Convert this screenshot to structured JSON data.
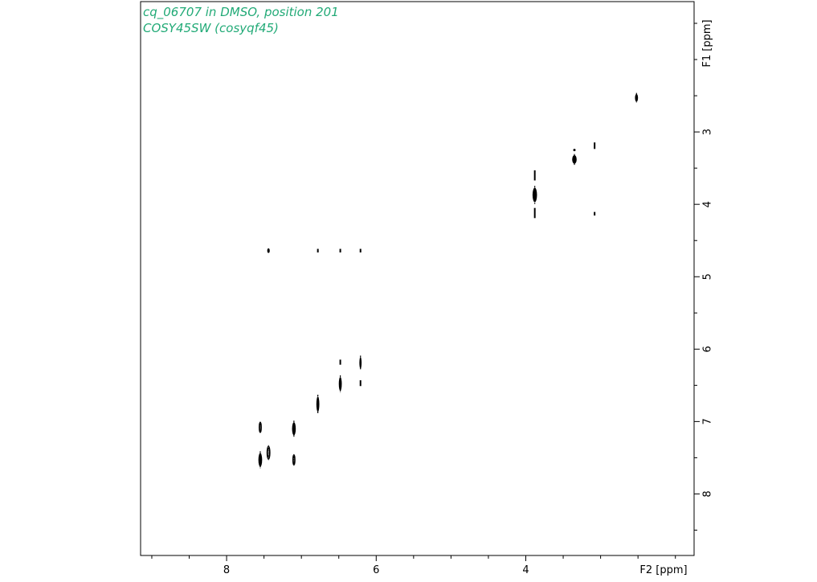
{
  "chart_data": {
    "type": "scatter",
    "subtype": "2D NMR COSY contour plot",
    "title": "cq_06707 in DMSO, position 201",
    "subtitle": "COSY45SW (cosyqf45)",
    "xlabel": "F2 [ppm]",
    "ylabel": "F1 [ppm]",
    "x_axis_reversed": true,
    "y_axis_reversed": true,
    "xlim": [
      9.15,
      1.75
    ],
    "ylim": [
      1.2,
      8.85
    ],
    "x_ticks": [
      8,
      6,
      4
    ],
    "x_tick_labels": [
      "8",
      "6",
      "4"
    ],
    "y_ticks": [
      3,
      4,
      5,
      6,
      7,
      8
    ],
    "y_tick_labels": [
      "3",
      "4",
      "5",
      "6",
      "7",
      "8"
    ],
    "grid": false,
    "legend": "none",
    "colors": {
      "title": "#22aa77",
      "contours": "#000000"
    },
    "peaks": [
      {
        "f2": 2.52,
        "f1": 2.53,
        "w": 0.04,
        "h": 0.11,
        "style": "filled"
      },
      {
        "f2": 3.35,
        "f1": 3.38,
        "w": 0.06,
        "h": 0.12,
        "style": "filled"
      },
      {
        "f2": 3.35,
        "f1": 3.25,
        "w": 0.02,
        "h": 0.04,
        "style": "dot"
      },
      {
        "f2": 3.08,
        "f1": 3.19,
        "w": 0.02,
        "h": 0.09,
        "style": "line"
      },
      {
        "f2": 3.08,
        "f1": 4.13,
        "w": 0.01,
        "h": 0.05,
        "style": "line"
      },
      {
        "f2": 3.88,
        "f1": 3.87,
        "w": 0.06,
        "h": 0.2,
        "style": "filled"
      },
      {
        "f2": 3.88,
        "f1": 3.6,
        "w": 0.01,
        "h": 0.14,
        "style": "line"
      },
      {
        "f2": 3.88,
        "f1": 4.12,
        "w": 0.01,
        "h": 0.14,
        "style": "line"
      },
      {
        "f2": 7.44,
        "f1": 4.64,
        "w": 0.02,
        "h": 0.05,
        "style": "open"
      },
      {
        "f2": 6.78,
        "f1": 4.64,
        "w": 0.01,
        "h": 0.05,
        "style": "line"
      },
      {
        "f2": 6.48,
        "f1": 4.64,
        "w": 0.01,
        "h": 0.05,
        "style": "line"
      },
      {
        "f2": 6.21,
        "f1": 4.64,
        "w": 0.01,
        "h": 0.05,
        "style": "line"
      },
      {
        "f2": 6.21,
        "f1": 6.19,
        "w": 0.03,
        "h": 0.16,
        "style": "filled"
      },
      {
        "f2": 6.21,
        "f1": 6.47,
        "w": 0.01,
        "h": 0.08,
        "style": "line"
      },
      {
        "f2": 6.48,
        "f1": 6.48,
        "w": 0.04,
        "h": 0.19,
        "style": "filled"
      },
      {
        "f2": 6.48,
        "f1": 6.18,
        "w": 0.01,
        "h": 0.07,
        "style": "line"
      },
      {
        "f2": 6.78,
        "f1": 6.76,
        "w": 0.04,
        "h": 0.21,
        "style": "filled"
      },
      {
        "f2": 7.1,
        "f1": 7.1,
        "w": 0.05,
        "h": 0.18,
        "style": "filled"
      },
      {
        "f2": 7.1,
        "f1": 7.53,
        "w": 0.03,
        "h": 0.14,
        "style": "open"
      },
      {
        "f2": 7.44,
        "f1": 7.43,
        "w": 0.04,
        "h": 0.18,
        "style": "open"
      },
      {
        "f2": 7.55,
        "f1": 7.53,
        "w": 0.05,
        "h": 0.19,
        "style": "filled"
      },
      {
        "f2": 7.55,
        "f1": 7.08,
        "w": 0.03,
        "h": 0.14,
        "style": "open"
      }
    ]
  }
}
